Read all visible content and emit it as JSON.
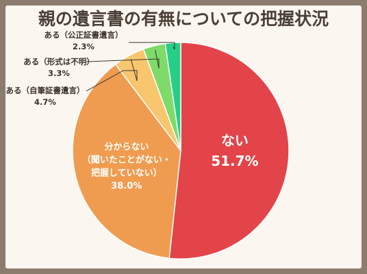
{
  "chart_data": {
    "type": "pie",
    "title": "親の遺言書の有無についての把握状況",
    "slices": [
      {
        "label": "ない",
        "value": 51.7,
        "display": "51.7%",
        "color": "#e3444a"
      },
      {
        "label": "分からない（聞いたことがない・把握していない）",
        "lines": [
          "分からない",
          "（聞いたことがない・",
          "把握していない）"
        ],
        "value": 38.0,
        "display": "38.0%",
        "color": "#ef9c50"
      },
      {
        "label": "ある（自筆証書遺言）",
        "value": 4.7,
        "display": "4.7%",
        "color": "#f8c66e"
      },
      {
        "label": "ある（形式は不明）",
        "value": 3.3,
        "display": "3.3%",
        "color": "#7edb6a"
      },
      {
        "label": "ある（公正証書遺言）",
        "value": 2.3,
        "display": "2.3%",
        "color": "#26cf86"
      }
    ]
  }
}
